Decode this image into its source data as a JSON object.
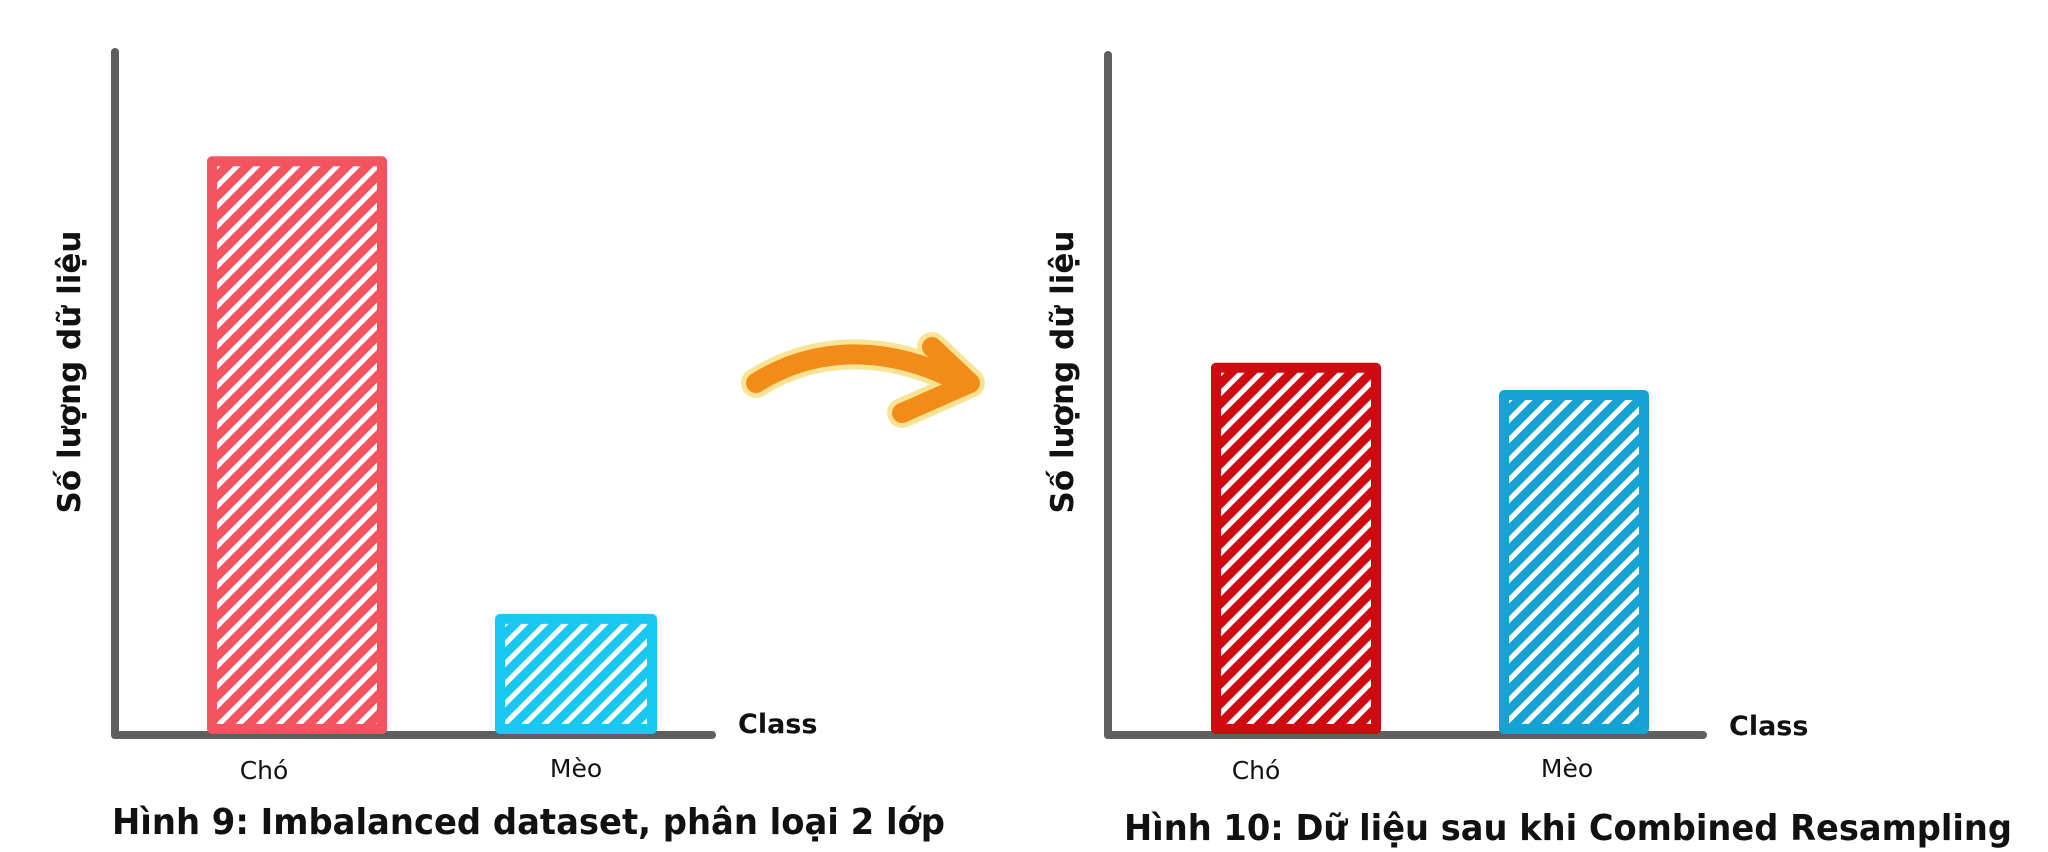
{
  "colors": {
    "axis": "#5f5f5f",
    "arrow": "#f28c18",
    "arrow_glow": "#fbe08a"
  },
  "chart_data": [
    {
      "type": "bar",
      "title": "Hình 9: Imbalanced dataset, phân loại 2 lớp",
      "xlabel": "Class",
      "ylabel": "Số lượng dữ liệu",
      "categories": [
        "Chó",
        "Mèo"
      ],
      "values": [
        0.84,
        0.17
      ],
      "value_unit": "fraction of y-axis height (axis has no ticks)",
      "ylim": [
        0,
        1
      ],
      "colors": [
        "#f4545f",
        "#19c8f0"
      ],
      "grid": false
    },
    {
      "type": "bar",
      "title": "Hình 10: Dữ liệu sau khi Combined Resampling",
      "xlabel": "Class",
      "ylabel": "Số lượng dữ liệu",
      "categories": [
        "Chó",
        "Mèo"
      ],
      "values": [
        0.54,
        0.5
      ],
      "value_unit": "fraction of y-axis height (axis has no ticks)",
      "ylim": [
        0,
        1
      ],
      "colors": [
        "#cc0a10",
        "#16a3d4"
      ],
      "grid": false
    }
  ]
}
